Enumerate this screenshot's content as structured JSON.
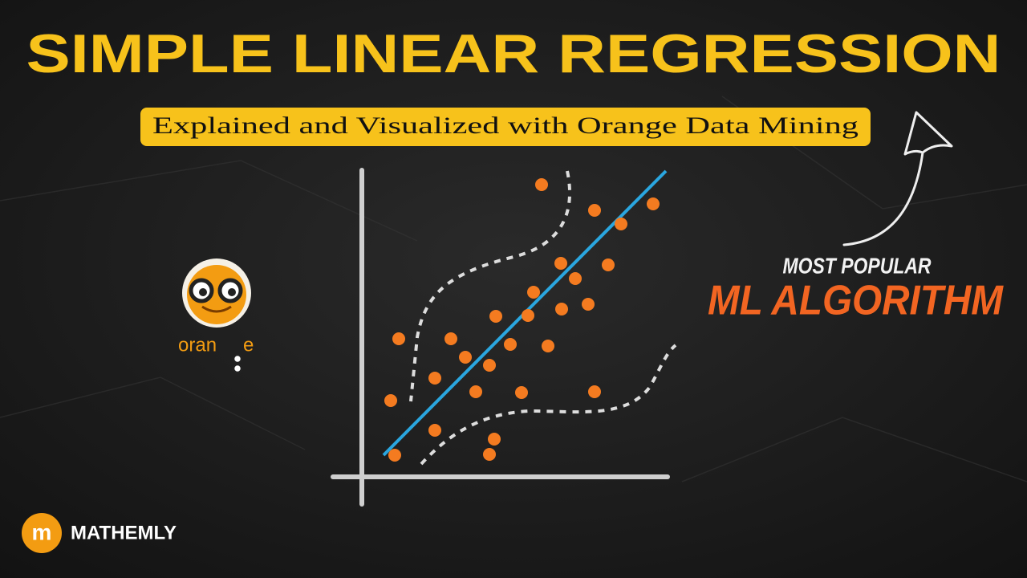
{
  "title": "SIMPLE LINEAR REGRESSION",
  "subtitle": "Explained and Visualized with Orange Data Mining",
  "badge": {
    "line1": "MOST POPULAR",
    "line2": "ML ALGORITHM"
  },
  "orange_logo": {
    "text_start": "oran",
    "text_end": "e"
  },
  "brand": {
    "icon": "m",
    "name": "MATHEMLY"
  }
}
